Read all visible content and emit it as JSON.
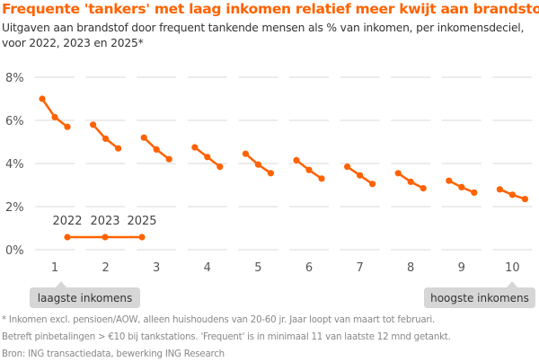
{
  "chart_data": {
    "type": "line",
    "title": "Frequente 'tankers' met laag inkomen relatief meer kwijt aan brandstof",
    "subtitle": "Uitgaven aan brandstof door frequent tankende mensen als % van inkomen, per inkomensdeciel, voor 2022, 2023 en 2025*",
    "xlabel": "",
    "ylabel": "",
    "categories": [
      "1",
      "2",
      "3",
      "4",
      "5",
      "6",
      "7",
      "8",
      "9",
      "10"
    ],
    "series_years": [
      "2022",
      "2023",
      "2025"
    ],
    "values_by_decile": [
      [
        7.0,
        6.15,
        5.7
      ],
      [
        5.8,
        5.15,
        4.7
      ],
      [
        5.2,
        4.65,
        4.2
      ],
      [
        4.75,
        4.3,
        3.85
      ],
      [
        4.45,
        3.95,
        3.55
      ],
      [
        4.15,
        3.7,
        3.3
      ],
      [
        3.85,
        3.45,
        3.05
      ],
      [
        3.55,
        3.15,
        2.85
      ],
      [
        3.2,
        2.9,
        2.65
      ],
      [
        2.8,
        2.55,
        2.35
      ]
    ],
    "yticks": [
      "0%",
      "2%",
      "4%",
      "6%",
      "8%"
    ],
    "ylim": [
      0,
      8
    ],
    "grid": true,
    "legend_placement": "bottom-left inside plot",
    "annotations": {
      "low": "laagste inkomens",
      "high": "hoogste inkomens"
    },
    "colors": {
      "series": "#FF6200",
      "grid": "#D9D9D9",
      "callout": "#D6D6D6"
    }
  },
  "footnotes": [
    "* Inkomen excl. pensioen/AOW, alleen huishoudens van 20-60 jr. Jaar loopt van maart tot februari.",
    "Betreft pinbetalingen > €10 bij tankstations. 'Frequent' is in minimaal 11 van laatste 12 mnd getankt.",
    "Bron: ING transactiedata, bewerking ING Research"
  ]
}
